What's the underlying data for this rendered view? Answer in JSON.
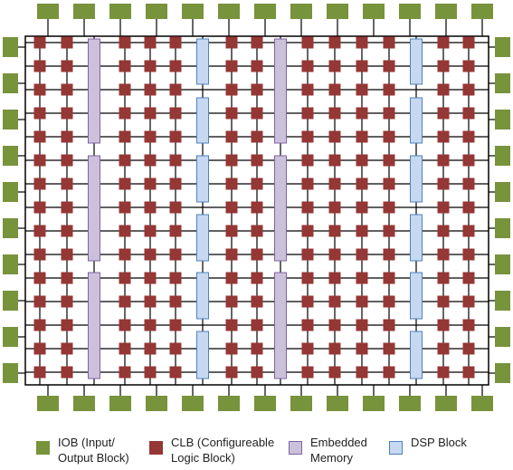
{
  "colors": {
    "iob": "#77933c",
    "clb": "#953735",
    "memory": "#ccc1da",
    "memory_border": "#8064a2",
    "dsp": "#c6d9f1",
    "dsp_border": "#4f81bd",
    "wire": "#000000"
  },
  "legend": {
    "iob": {
      "icon": "iob-swatch",
      "line1": "IOB (Input/",
      "line2": "Output Block)"
    },
    "clb": {
      "icon": "clb-swatch",
      "line1": "CLB (Configureable",
      "line2": "Logic Block)"
    },
    "memory": {
      "icon": "memory-swatch",
      "line1": "Embedded",
      "line2": "Memory"
    },
    "dsp": {
      "icon": "dsp-swatch",
      "line1": "DSP Block",
      "line2": ""
    }
  }
}
